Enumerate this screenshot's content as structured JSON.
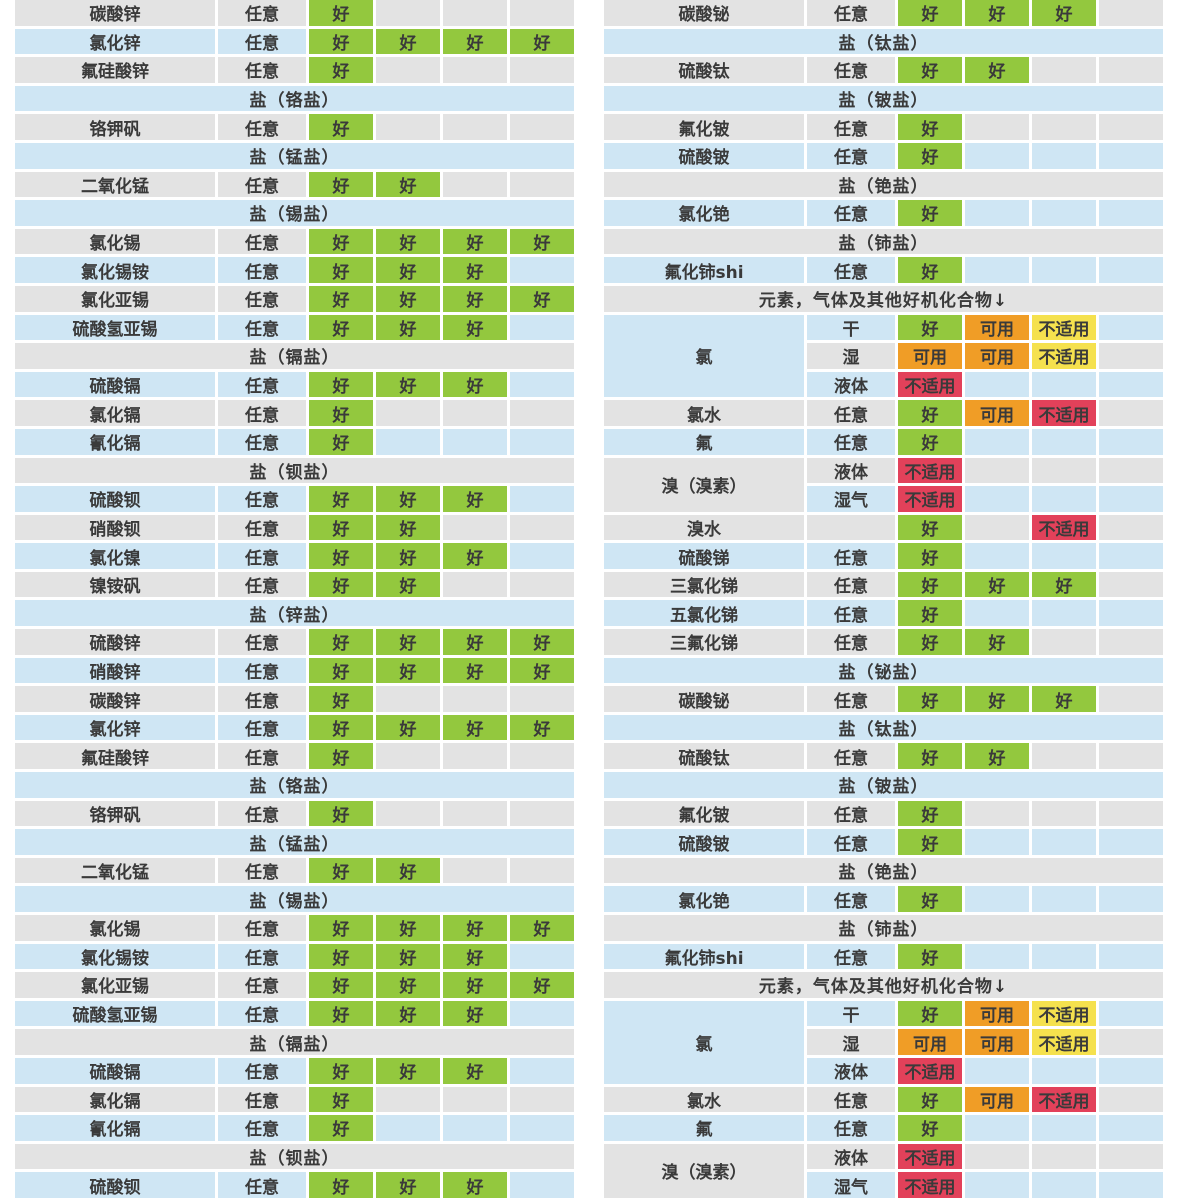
{
  "colors": {
    "row_gray": "#e3e3e3",
    "row_blue": "#cfe6f4",
    "good": "#93c83e",
    "usable": "#f09d26",
    "no_yellow": "#f5e14e",
    "no_red": "#e2415a"
  },
  "legend": {
    "good_label": "好",
    "usable_label": "可用",
    "unsuitable_label": "不适用"
  },
  "left_table": {
    "rows": [
      {
        "type": "item",
        "name": "碳酸锌",
        "condition": "任意",
        "ratings": [
          [
            "好",
            "good"
          ],
          null,
          null,
          null
        ]
      },
      {
        "type": "item",
        "name": "氯化锌",
        "condition": "任意",
        "ratings": [
          [
            "好",
            "good"
          ],
          [
            "好",
            "good"
          ],
          [
            "好",
            "good"
          ],
          [
            "好",
            "good"
          ]
        ]
      },
      {
        "type": "item",
        "name": "氟硅酸锌",
        "condition": "任意",
        "ratings": [
          [
            "好",
            "good"
          ],
          null,
          null,
          null
        ]
      },
      {
        "type": "header",
        "label": "盐（铬盐）"
      },
      {
        "type": "item",
        "name": "铬钾矾",
        "condition": "任意",
        "ratings": [
          [
            "好",
            "good"
          ],
          null,
          null,
          null
        ]
      },
      {
        "type": "header",
        "label": "盐（锰盐）"
      },
      {
        "type": "item",
        "name": "二氧化锰",
        "condition": "任意",
        "ratings": [
          [
            "好",
            "good"
          ],
          [
            "好",
            "good"
          ],
          null,
          null
        ]
      },
      {
        "type": "header",
        "label": "盐（锡盐）"
      },
      {
        "type": "item",
        "name": "氯化锡",
        "condition": "任意",
        "ratings": [
          [
            "好",
            "good"
          ],
          [
            "好",
            "good"
          ],
          [
            "好",
            "good"
          ],
          [
            "好",
            "good"
          ]
        ]
      },
      {
        "type": "item",
        "name": "氯化锡铵",
        "condition": "任意",
        "ratings": [
          [
            "好",
            "good"
          ],
          [
            "好",
            "good"
          ],
          [
            "好",
            "good"
          ],
          null
        ]
      },
      {
        "type": "item",
        "name": "氯化亚锡",
        "condition": "任意",
        "ratings": [
          [
            "好",
            "good"
          ],
          [
            "好",
            "good"
          ],
          [
            "好",
            "good"
          ],
          [
            "好",
            "good"
          ]
        ]
      },
      {
        "type": "item",
        "name": "硫酸氢亚锡",
        "condition": "任意",
        "ratings": [
          [
            "好",
            "good"
          ],
          [
            "好",
            "good"
          ],
          [
            "好",
            "good"
          ],
          null
        ]
      },
      {
        "type": "header",
        "label": "盐（镉盐）"
      },
      {
        "type": "item",
        "name": "硫酸镉",
        "condition": "任意",
        "ratings": [
          [
            "好",
            "good"
          ],
          [
            "好",
            "good"
          ],
          [
            "好",
            "good"
          ],
          null
        ]
      },
      {
        "type": "item",
        "name": "氯化镉",
        "condition": "任意",
        "ratings": [
          [
            "好",
            "good"
          ],
          null,
          null,
          null
        ]
      },
      {
        "type": "item",
        "name": "氰化镉",
        "condition": "任意",
        "ratings": [
          [
            "好",
            "good"
          ],
          null,
          null,
          null
        ]
      },
      {
        "type": "header",
        "label": "盐（钡盐）"
      },
      {
        "type": "item",
        "name": "硫酸钡",
        "condition": "任意",
        "ratings": [
          [
            "好",
            "good"
          ],
          [
            "好",
            "good"
          ],
          [
            "好",
            "good"
          ],
          null
        ]
      },
      {
        "type": "item",
        "name": "硝酸钡",
        "condition": "任意",
        "ratings": [
          [
            "好",
            "good"
          ],
          [
            "好",
            "good"
          ],
          null,
          null
        ]
      },
      {
        "type": "item",
        "name": "氯化镍",
        "condition": "任意",
        "ratings": [
          [
            "好",
            "good"
          ],
          [
            "好",
            "good"
          ],
          [
            "好",
            "good"
          ],
          null
        ]
      },
      {
        "type": "item",
        "name": "镍铵矾",
        "condition": "任意",
        "ratings": [
          [
            "好",
            "good"
          ],
          [
            "好",
            "good"
          ],
          null,
          null
        ]
      },
      {
        "type": "header",
        "label": "盐（锌盐）"
      },
      {
        "type": "item",
        "name": "硫酸锌",
        "condition": "任意",
        "ratings": [
          [
            "好",
            "good"
          ],
          [
            "好",
            "good"
          ],
          [
            "好",
            "good"
          ],
          [
            "好",
            "good"
          ]
        ]
      },
      {
        "type": "item",
        "name": "硝酸锌",
        "condition": "任意",
        "ratings": [
          [
            "好",
            "good"
          ],
          [
            "好",
            "good"
          ],
          [
            "好",
            "good"
          ],
          [
            "好",
            "good"
          ]
        ]
      },
      {
        "type": "item",
        "name": "碳酸锌",
        "condition": "任意",
        "ratings": [
          [
            "好",
            "good"
          ],
          null,
          null,
          null
        ]
      },
      {
        "type": "item",
        "name": "氯化锌",
        "condition": "任意",
        "ratings": [
          [
            "好",
            "good"
          ],
          [
            "好",
            "good"
          ],
          [
            "好",
            "good"
          ],
          [
            "好",
            "good"
          ]
        ]
      },
      {
        "type": "item",
        "name": "氟硅酸锌",
        "condition": "任意",
        "ratings": [
          [
            "好",
            "good"
          ],
          null,
          null,
          null
        ]
      },
      {
        "type": "header",
        "label": "盐（铬盐）"
      },
      {
        "type": "item",
        "name": "铬钾矾",
        "condition": "任意",
        "ratings": [
          [
            "好",
            "good"
          ],
          null,
          null,
          null
        ]
      },
      {
        "type": "header",
        "label": "盐（锰盐）"
      },
      {
        "type": "item",
        "name": "二氧化锰",
        "condition": "任意",
        "ratings": [
          [
            "好",
            "good"
          ],
          [
            "好",
            "good"
          ],
          null,
          null
        ]
      },
      {
        "type": "header",
        "label": "盐（锡盐）"
      },
      {
        "type": "item",
        "name": "氯化锡",
        "condition": "任意",
        "ratings": [
          [
            "好",
            "good"
          ],
          [
            "好",
            "good"
          ],
          [
            "好",
            "good"
          ],
          [
            "好",
            "good"
          ]
        ]
      },
      {
        "type": "item",
        "name": "氯化锡铵",
        "condition": "任意",
        "ratings": [
          [
            "好",
            "good"
          ],
          [
            "好",
            "good"
          ],
          [
            "好",
            "good"
          ],
          null
        ]
      },
      {
        "type": "item",
        "name": "氯化亚锡",
        "condition": "任意",
        "ratings": [
          [
            "好",
            "good"
          ],
          [
            "好",
            "good"
          ],
          [
            "好",
            "good"
          ],
          [
            "好",
            "good"
          ]
        ]
      },
      {
        "type": "item",
        "name": "硫酸氢亚锡",
        "condition": "任意",
        "ratings": [
          [
            "好",
            "good"
          ],
          [
            "好",
            "good"
          ],
          [
            "好",
            "good"
          ],
          null
        ]
      },
      {
        "type": "header",
        "label": "盐（镉盐）"
      },
      {
        "type": "item",
        "name": "硫酸镉",
        "condition": "任意",
        "ratings": [
          [
            "好",
            "good"
          ],
          [
            "好",
            "good"
          ],
          [
            "好",
            "good"
          ],
          null
        ]
      },
      {
        "type": "item",
        "name": "氯化镉",
        "condition": "任意",
        "ratings": [
          [
            "好",
            "good"
          ],
          null,
          null,
          null
        ]
      },
      {
        "type": "item",
        "name": "氰化镉",
        "condition": "任意",
        "ratings": [
          [
            "好",
            "good"
          ],
          null,
          null,
          null
        ]
      },
      {
        "type": "header",
        "label": "盐（钡盐）"
      },
      {
        "type": "item",
        "name": "硫酸钡",
        "condition": "任意",
        "ratings": [
          [
            "好",
            "good"
          ],
          [
            "好",
            "good"
          ],
          [
            "好",
            "good"
          ],
          null
        ]
      }
    ]
  },
  "right_table": {
    "rows": [
      {
        "type": "item",
        "name": "碳酸铋",
        "condition": "任意",
        "ratings": [
          [
            "好",
            "good"
          ],
          [
            "好",
            "good"
          ],
          [
            "好",
            "good"
          ],
          null
        ]
      },
      {
        "type": "header",
        "label": "盐（钛盐）"
      },
      {
        "type": "item",
        "name": "硫酸钛",
        "condition": "任意",
        "ratings": [
          [
            "好",
            "good"
          ],
          [
            "好",
            "good"
          ],
          null,
          null
        ]
      },
      {
        "type": "header",
        "label": "盐（铍盐）"
      },
      {
        "type": "item",
        "name": "氟化铍",
        "condition": "任意",
        "ratings": [
          [
            "好",
            "good"
          ],
          null,
          null,
          null
        ]
      },
      {
        "type": "item",
        "name": "硫酸铍",
        "condition": "任意",
        "ratings": [
          [
            "好",
            "good"
          ],
          null,
          null,
          null
        ]
      },
      {
        "type": "header",
        "label": "盐（铯盐）"
      },
      {
        "type": "item",
        "name": "氯化铯",
        "condition": "任意",
        "ratings": [
          [
            "好",
            "good"
          ],
          null,
          null,
          null
        ]
      },
      {
        "type": "header",
        "label": "盐（铈盐）"
      },
      {
        "type": "item",
        "name": "氟化铈shi",
        "condition": "任意",
        "ratings": [
          [
            "好",
            "good"
          ],
          null,
          null,
          null
        ]
      },
      {
        "type": "header",
        "label": "元素，气体及其他好机化合物↓"
      },
      {
        "type": "group",
        "name": "氯",
        "sub_rows": [
          {
            "condition": "干",
            "ratings": [
              [
                "好",
                "good"
              ],
              [
                "可用",
                "usable"
              ],
              [
                "不适用",
                "no_yellow"
              ],
              null
            ]
          },
          {
            "condition": "湿",
            "ratings": [
              [
                "可用",
                "usable"
              ],
              [
                "可用",
                "usable"
              ],
              [
                "不适用",
                "no_yellow"
              ],
              null
            ]
          },
          {
            "condition": "液体",
            "ratings": [
              [
                "不适用",
                "no_red"
              ],
              null,
              null,
              null
            ]
          }
        ]
      },
      {
        "type": "item",
        "name": "氯水",
        "condition": "任意",
        "ratings": [
          [
            "好",
            "good"
          ],
          [
            "可用",
            "usable"
          ],
          [
            "不适用",
            "no_red"
          ],
          null
        ]
      },
      {
        "type": "item",
        "name": "氟",
        "condition": "任意",
        "ratings": [
          [
            "好",
            "good"
          ],
          null,
          null,
          null
        ]
      },
      {
        "type": "group",
        "name": "溴（溴素）",
        "sub_rows": [
          {
            "condition": "液体",
            "ratings": [
              [
                "不适用",
                "no_red"
              ],
              null,
              null,
              null
            ]
          },
          {
            "condition": "湿气",
            "ratings": [
              [
                "不适用",
                "no_red"
              ],
              null,
              null,
              null
            ]
          }
        ]
      },
      {
        "type": "item",
        "name": "溴水",
        "condition": "",
        "ratings": [
          [
            "好",
            "good"
          ],
          null,
          [
            "不适用",
            "no_red"
          ],
          null
        ]
      },
      {
        "type": "item",
        "name": "硫酸锑",
        "condition": "任意",
        "ratings": [
          [
            "好",
            "good"
          ],
          null,
          null,
          null
        ]
      },
      {
        "type": "item",
        "name": "三氯化锑",
        "condition": "任意",
        "ratings": [
          [
            "好",
            "good"
          ],
          [
            "好",
            "good"
          ],
          [
            "好",
            "good"
          ],
          null
        ]
      },
      {
        "type": "item",
        "name": "五氯化锑",
        "condition": "任意",
        "ratings": [
          [
            "好",
            "good"
          ],
          null,
          null,
          null
        ]
      },
      {
        "type": "item",
        "name": "三氟化锑",
        "condition": "任意",
        "ratings": [
          [
            "好",
            "good"
          ],
          [
            "好",
            "good"
          ],
          null,
          null
        ]
      },
      {
        "type": "header",
        "label": "盐（铋盐）"
      },
      {
        "type": "item",
        "name": "碳酸铋",
        "condition": "任意",
        "ratings": [
          [
            "好",
            "good"
          ],
          [
            "好",
            "good"
          ],
          [
            "好",
            "good"
          ],
          null
        ]
      },
      {
        "type": "header",
        "label": "盐（钛盐）"
      },
      {
        "type": "item",
        "name": "硫酸钛",
        "condition": "任意",
        "ratings": [
          [
            "好",
            "good"
          ],
          [
            "好",
            "good"
          ],
          null,
          null
        ]
      },
      {
        "type": "header",
        "label": "盐（铍盐）"
      },
      {
        "type": "item",
        "name": "氟化铍",
        "condition": "任意",
        "ratings": [
          [
            "好",
            "good"
          ],
          null,
          null,
          null
        ]
      },
      {
        "type": "item",
        "name": "硫酸铍",
        "condition": "任意",
        "ratings": [
          [
            "好",
            "good"
          ],
          null,
          null,
          null
        ]
      },
      {
        "type": "header",
        "label": "盐（铯盐）"
      },
      {
        "type": "item",
        "name": "氯化铯",
        "condition": "任意",
        "ratings": [
          [
            "好",
            "good"
          ],
          null,
          null,
          null
        ]
      },
      {
        "type": "header",
        "label": "盐（铈盐）"
      },
      {
        "type": "item",
        "name": "氟化铈shi",
        "condition": "任意",
        "ratings": [
          [
            "好",
            "good"
          ],
          null,
          null,
          null
        ]
      },
      {
        "type": "header",
        "label": "元素，气体及其他好机化合物↓"
      },
      {
        "type": "group",
        "name": "氯",
        "sub_rows": [
          {
            "condition": "干",
            "ratings": [
              [
                "好",
                "good"
              ],
              [
                "可用",
                "usable"
              ],
              [
                "不适用",
                "no_yellow"
              ],
              null
            ]
          },
          {
            "condition": "湿",
            "ratings": [
              [
                "可用",
                "usable"
              ],
              [
                "可用",
                "usable"
              ],
              [
                "不适用",
                "no_yellow"
              ],
              null
            ]
          },
          {
            "condition": "液体",
            "ratings": [
              [
                "不适用",
                "no_red"
              ],
              null,
              null,
              null
            ]
          }
        ]
      },
      {
        "type": "item",
        "name": "氯水",
        "condition": "任意",
        "ratings": [
          [
            "好",
            "good"
          ],
          [
            "可用",
            "usable"
          ],
          [
            "不适用",
            "no_red"
          ],
          null
        ]
      },
      {
        "type": "item",
        "name": "氟",
        "condition": "任意",
        "ratings": [
          [
            "好",
            "good"
          ],
          null,
          null,
          null
        ]
      },
      {
        "type": "group",
        "name": "溴（溴素）",
        "sub_rows": [
          {
            "condition": "液体",
            "ratings": [
              [
                "不适用",
                "no_red"
              ],
              null,
              null,
              null
            ]
          },
          {
            "condition": "湿气",
            "ratings": [
              [
                "不适用",
                "no_red"
              ],
              null,
              null,
              null
            ]
          }
        ]
      }
    ]
  }
}
